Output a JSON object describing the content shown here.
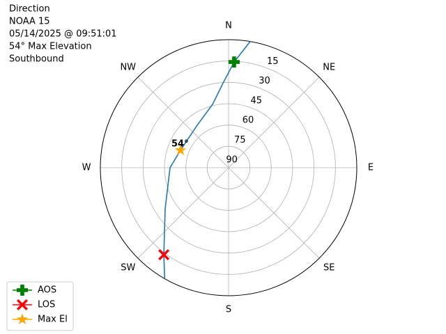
{
  "chart_data": {
    "type": "polar",
    "title_lines": [
      "Direction",
      "NOAA 15",
      "05/14/2025 @ 09:51:01",
      "54° Max Elevation",
      "Southbound"
    ],
    "rlim": [
      90,
      0
    ],
    "rticks": [
      15,
      30,
      45,
      60,
      75,
      90
    ],
    "thetaticks": [
      {
        "value": 0,
        "label": "N"
      },
      {
        "value": 45,
        "label": "NE"
      },
      {
        "value": 90,
        "label": "E"
      },
      {
        "value": 135,
        "label": "SE"
      },
      {
        "value": 180,
        "label": "S"
      },
      {
        "value": 225,
        "label": "SW"
      },
      {
        "value": 270,
        "label": "W"
      },
      {
        "value": 315,
        "label": "NW"
      }
    ],
    "grid": true,
    "track": {
      "color": "#1f77b4",
      "azimuth": [
        9.7,
        3,
        356,
        346,
        323.6,
        290,
        270,
        237,
        216.6,
        209.9
      ],
      "elevation": [
        0,
        15.6,
        30.8,
        44,
        52.9,
        54.1,
        48.9,
        36.9,
        13.8,
        0
      ]
    },
    "series": [
      {
        "name": "AOS",
        "color": "green",
        "marker": "plus",
        "azimuth": [
          3
        ],
        "elevation": [
          15.6
        ]
      },
      {
        "name": "LOS",
        "color": "red",
        "marker": "x",
        "azimuth": [
          216.6
        ],
        "elevation": [
          13.8
        ]
      },
      {
        "name": "Max El",
        "color": "orange",
        "marker": "star",
        "azimuth": [
          290
        ],
        "elevation": [
          54.1
        ]
      }
    ],
    "annotations": [
      {
        "text": "54°"
      }
    ],
    "legend": "lower left"
  }
}
